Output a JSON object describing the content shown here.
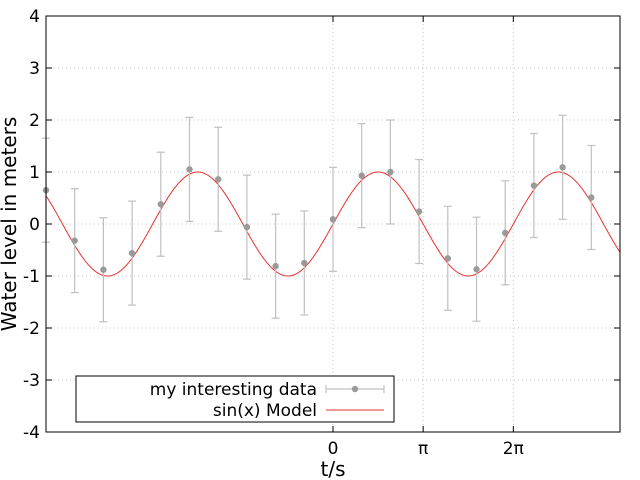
{
  "chart_data": {
    "type": "scatter",
    "title": "",
    "xlabel": "t/s",
    "ylabel": "Water level in meters",
    "xlim": [
      -10.0,
      10.0
    ],
    "ylim": [
      -4,
      4
    ],
    "x_ticks": [
      {
        "value": 0,
        "label": "0"
      },
      {
        "value": 3.14159,
        "label": "π"
      },
      {
        "value": 6.28318,
        "label": "2π"
      }
    ],
    "y_ticks": [
      -4,
      -3,
      -2,
      -1,
      0,
      1,
      2,
      3,
      4
    ],
    "grid": true,
    "legend": {
      "position": "bottom-left",
      "entries": [
        {
          "label": "my interesting data",
          "series": "data"
        },
        {
          "label": "sin(x) Model",
          "series": "model"
        }
      ]
    },
    "series": [
      {
        "id": "data",
        "style": "points-with-errorbars",
        "color": "#9a9a9a",
        "errorbar_color": "#c0c0c0",
        "error": 1.0,
        "x": [
          -10.0,
          -9.0,
          -8.0,
          -7.0,
          -6.0,
          -5.0,
          -4.0,
          -3.0,
          -2.0,
          -1.0,
          0.0,
          1.0,
          2.0,
          3.0,
          4.0,
          5.0,
          6.0,
          7.0,
          8.0,
          9.0
        ],
        "y": [
          0.65,
          -0.32,
          -0.88,
          -0.56,
          0.38,
          1.05,
          0.86,
          -0.06,
          -0.81,
          -0.75,
          0.09,
          0.93,
          1.0,
          0.24,
          -0.66,
          -0.87,
          -0.17,
          0.74,
          1.09,
          0.51
        ]
      },
      {
        "id": "model",
        "style": "line",
        "color": "#e8322c",
        "function": "sin(x)",
        "domain": [
          -10.0,
          10.0
        ]
      }
    ]
  }
}
